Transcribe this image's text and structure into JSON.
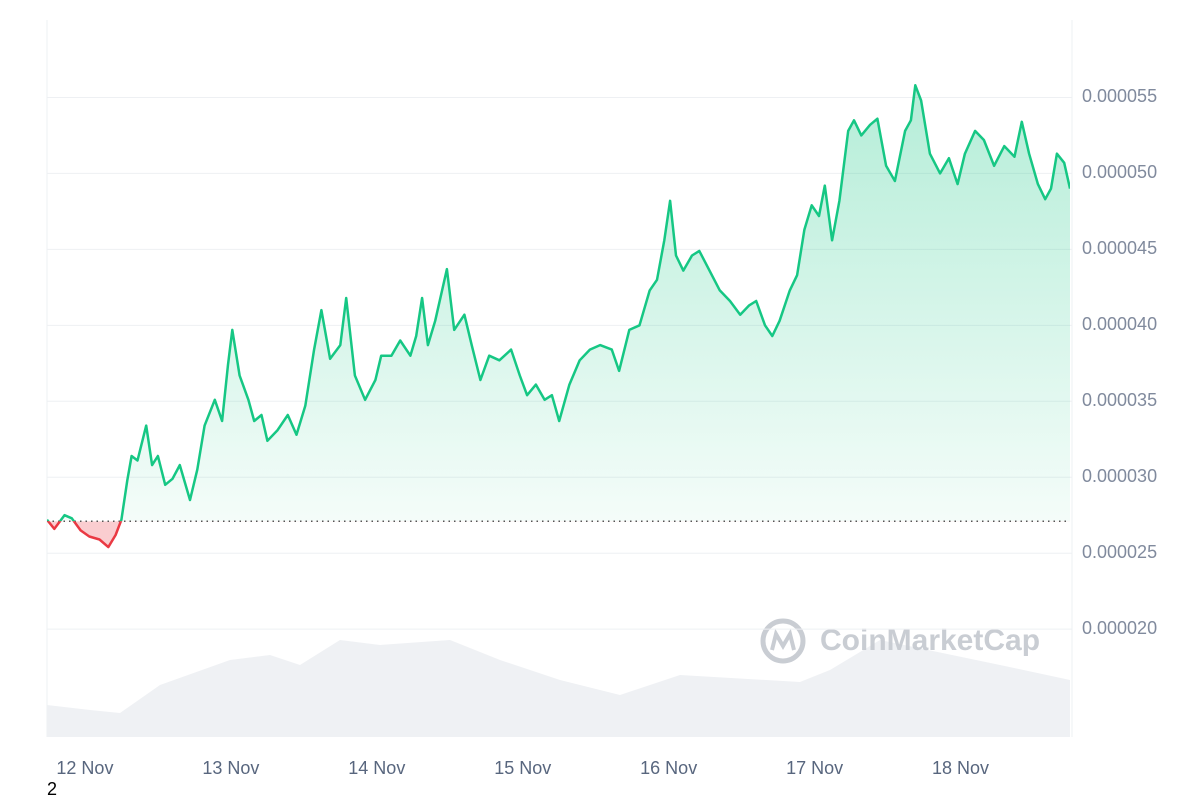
{
  "chart_data": {
    "type": "line",
    "watermark": "CoinMarketCap",
    "x": [
      -0.26,
      -0.21,
      -0.14,
      -0.09,
      -0.03,
      0.03,
      0.1,
      0.16,
      0.21,
      0.25,
      0.29,
      0.32,
      0.36,
      0.42,
      0.46,
      0.5,
      0.55,
      0.6,
      0.65,
      0.72,
      0.77,
      0.82,
      0.89,
      0.94,
      0.98,
      1.01,
      1.06,
      1.12,
      1.16,
      1.21,
      1.25,
      1.32,
      1.39,
      1.45,
      1.51,
      1.57,
      1.62,
      1.68,
      1.75,
      1.79,
      1.85,
      1.92,
      1.99,
      2.03,
      2.1,
      2.16,
      2.23,
      2.27,
      2.31,
      2.35,
      2.4,
      2.48,
      2.53,
      2.6,
      2.65,
      2.71,
      2.77,
      2.84,
      2.92,
      2.98,
      3.03,
      3.09,
      3.15,
      3.2,
      3.25,
      3.32,
      3.39,
      3.46,
      3.53,
      3.61,
      3.66,
      3.73,
      3.8,
      3.87,
      3.92,
      3.97,
      4.01,
      4.05,
      4.1,
      4.16,
      4.21,
      4.28,
      4.35,
      4.42,
      4.49,
      4.55,
      4.6,
      4.66,
      4.71,
      4.76,
      4.83,
      4.88,
      4.93,
      4.98,
      5.03,
      5.07,
      5.12,
      5.17,
      5.23,
      5.27,
      5.32,
      5.38,
      5.43,
      5.49,
      5.55,
      5.62,
      5.66,
      5.69,
      5.73,
      5.79,
      5.86,
      5.92,
      5.98,
      6.03,
      6.1,
      6.16,
      6.23,
      6.3,
      6.37,
      6.42,
      6.47,
      6.53,
      6.58,
      6.62,
      6.66,
      6.71,
      6.75
    ],
    "values": [
      2.72e-05,
      2.66e-05,
      2.75e-05,
      2.73e-05,
      2.65e-05,
      2.61e-05,
      2.59e-05,
      2.54e-05,
      2.62e-05,
      2.72e-05,
      2.98e-05,
      3.14e-05,
      3.11e-05,
      3.34e-05,
      3.08e-05,
      3.14e-05,
      2.95e-05,
      2.99e-05,
      3.08e-05,
      2.85e-05,
      3.05e-05,
      3.34e-05,
      3.51e-05,
      3.37e-05,
      3.74e-05,
      3.97e-05,
      3.67e-05,
      3.51e-05,
      3.37e-05,
      3.41e-05,
      3.24e-05,
      3.31e-05,
      3.41e-05,
      3.28e-05,
      3.47e-05,
      3.84e-05,
      4.1e-05,
      3.78e-05,
      3.87e-05,
      4.18e-05,
      3.67e-05,
      3.51e-05,
      3.64e-05,
      3.8e-05,
      3.8e-05,
      3.9e-05,
      3.8e-05,
      3.93e-05,
      4.18e-05,
      3.87e-05,
      4.03e-05,
      4.37e-05,
      3.97e-05,
      4.07e-05,
      3.87e-05,
      3.64e-05,
      3.8e-05,
      3.77e-05,
      3.84e-05,
      3.67e-05,
      3.54e-05,
      3.61e-05,
      3.51e-05,
      3.54e-05,
      3.37e-05,
      3.61e-05,
      3.77e-05,
      3.84e-05,
      3.87e-05,
      3.84e-05,
      3.7e-05,
      3.97e-05,
      4e-05,
      4.23e-05,
      4.3e-05,
      4.56e-05,
      4.82e-05,
      4.46e-05,
      4.36e-05,
      4.46e-05,
      4.49e-05,
      4.36e-05,
      4.23e-05,
      4.16e-05,
      4.07e-05,
      4.13e-05,
      4.16e-05,
      4e-05,
      3.93e-05,
      4.03e-05,
      4.23e-05,
      4.33e-05,
      4.63e-05,
      4.79e-05,
      4.72e-05,
      4.92e-05,
      4.56e-05,
      4.82e-05,
      5.28e-05,
      5.35e-05,
      5.25e-05,
      5.32e-05,
      5.36e-05,
      5.05e-05,
      4.95e-05,
      5.28e-05,
      5.35e-05,
      5.58e-05,
      5.48e-05,
      5.13e-05,
      5e-05,
      5.1e-05,
      4.93e-05,
      5.13e-05,
      5.28e-05,
      5.22e-05,
      5.05e-05,
      5.18e-05,
      5.11e-05,
      5.34e-05,
      5.13e-05,
      4.93e-05,
      4.83e-05,
      4.9e-05,
      5.13e-05,
      5.07e-05,
      4.9e-05
    ],
    "color": "#16c784",
    "down_color": "#ea3943",
    "baseline": 2.71e-05,
    "xlim": [
      -0.26,
      6.75
    ],
    "xticks": [
      {
        "value": 0,
        "label": "12 Nov"
      },
      {
        "value": 1,
        "label": "13 Nov"
      },
      {
        "value": 2,
        "label": "14 Nov"
      },
      {
        "value": 3,
        "label": "15 Nov"
      },
      {
        "value": 4,
        "label": "16 Nov"
      },
      {
        "value": 5,
        "label": "17 Nov"
      },
      {
        "value": 6,
        "label": "18 Nov"
      }
    ],
    "ylim": [
      1.29e-05,
      6.01e-05
    ],
    "yticks": [
      {
        "value": 2e-05,
        "label": "0.000020"
      },
      {
        "value": 2.5e-05,
        "label": "0.000025"
      },
      {
        "value": 3e-05,
        "label": "0.000030"
      },
      {
        "value": 3.5e-05,
        "label": "0.000035"
      },
      {
        "value": 4e-05,
        "label": "0.000040"
      },
      {
        "value": 4.5e-05,
        "label": "0.000045"
      },
      {
        "value": 5e-05,
        "label": "0.000050"
      },
      {
        "value": 5.5e-05,
        "label": "0.000055"
      }
    ],
    "grid": true
  },
  "footer": "2"
}
